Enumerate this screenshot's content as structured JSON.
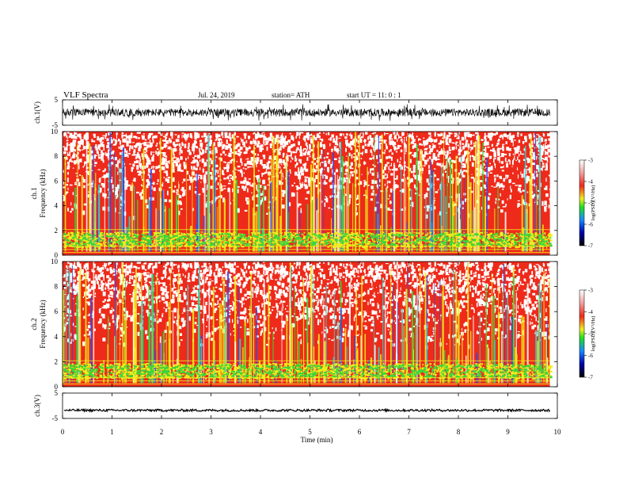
{
  "header": {
    "title": "VLF  Spectra",
    "date": "Jul.  24,  2019",
    "station": "station= ATH",
    "start_ut": "start  UT  =    11: 0   : 1"
  },
  "chart_data": [
    {
      "type": "line",
      "id": "ch1-waveform",
      "ylabel": "ch.1(V)",
      "ylim": [
        -5,
        5
      ],
      "yticks": [
        "5",
        "-5"
      ],
      "description_values": {
        "typical_range": [
          -1.5,
          1.5
        ]
      },
      "color": "#000000"
    },
    {
      "type": "heatmap",
      "id": "ch1-spectrogram",
      "ylabel_top": "ch.1",
      "ylabel": "Frequency  (kHz)",
      "ylim": [
        0,
        10
      ],
      "yticks": [
        "0",
        "2",
        "4",
        "6",
        "8",
        "10"
      ],
      "colorbar": {
        "label": "log(PSD)(V²/Hz)",
        "ticks": [
          "-3",
          "-4",
          "-5",
          "-6",
          "-7"
        ],
        "range": [
          -7,
          -3
        ]
      }
    },
    {
      "type": "heatmap",
      "id": "ch2-spectrogram",
      "ylabel_top": "ch.2",
      "ylabel": "Frequency  (kHz)",
      "ylim": [
        0,
        10
      ],
      "yticks": [
        "0",
        "2",
        "4",
        "6",
        "8",
        "10"
      ],
      "colorbar": {
        "label": "log(PSD)(V²/Hz)",
        "ticks": [
          "-3",
          "-4",
          "-5",
          "-6",
          "-7"
        ],
        "range": [
          -7,
          -3
        ]
      }
    },
    {
      "type": "line",
      "id": "ch3-waveform",
      "ylabel": "ch.3(V)",
      "ylim": [
        -5,
        5
      ],
      "yticks": [
        "5",
        "-5"
      ],
      "description_values": {
        "typical_level": -1.8
      },
      "color": "#000000"
    }
  ],
  "xaxis": {
    "label": "Time  (min)",
    "xlim": [
      0,
      10
    ],
    "ticks": [
      "0",
      "1",
      "2",
      "3",
      "4",
      "5",
      "6",
      "7",
      "8",
      "9",
      "10"
    ],
    "data_end": 9.85
  },
  "colors": {
    "white": "#ffffff",
    "red": "#ee2a1a",
    "yellow": "#eeee1a",
    "green": "#3ad63a",
    "cyan": "#2ad6d6",
    "blue": "#2a4aee",
    "black": "#000000"
  }
}
